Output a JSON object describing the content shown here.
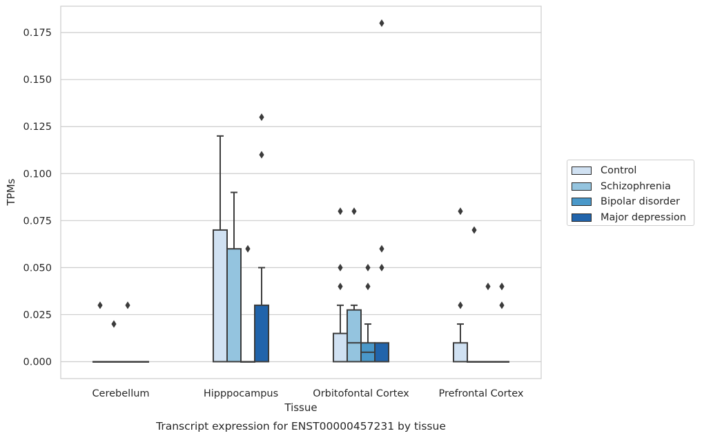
{
  "chart_data": {
    "type": "box",
    "title": "Transcript expression for ENST00000457231 by tissue",
    "xlabel": "Tissue",
    "ylabel": "TPMs",
    "ylim": [
      -0.009,
      0.189
    ],
    "yticks": [
      "0.000",
      "0.025",
      "0.050",
      "0.075",
      "0.100",
      "0.125",
      "0.150",
      "0.175"
    ],
    "grid": "horizontal",
    "legend_placement": "right",
    "categories": [
      "Cerebellum",
      "Hipppocampus",
      "Orbitofontal Cortex",
      "Prefrontal Cortex"
    ],
    "series": [
      {
        "name": "Control",
        "color": "#d0e1f2",
        "boxes": [
          {
            "q1": 0,
            "median": 0,
            "q3": 0,
            "whisker_low": 0,
            "whisker_high": 0,
            "outliers": [
              0.03
            ]
          },
          {
            "q1": 0,
            "median": 0,
            "q3": 0.07,
            "whisker_low": 0,
            "whisker_high": 0.12,
            "outliers": []
          },
          {
            "q1": 0,
            "median": 0,
            "q3": 0.015,
            "whisker_low": 0,
            "whisker_high": 0.03,
            "outliers": [
              0.04,
              0.05,
              0.08
            ]
          },
          {
            "q1": 0,
            "median": 0,
            "q3": 0.01,
            "whisker_low": 0,
            "whisker_high": 0.02,
            "outliers": [
              0.03,
              0.08
            ]
          }
        ]
      },
      {
        "name": "Schizophrenia",
        "color": "#94c4df",
        "boxes": [
          {
            "q1": 0,
            "median": 0,
            "q3": 0,
            "whisker_low": 0,
            "whisker_high": 0,
            "outliers": [
              0.02
            ]
          },
          {
            "q1": 0,
            "median": 0,
            "q3": 0.06,
            "whisker_low": 0,
            "whisker_high": 0.09,
            "outliers": []
          },
          {
            "q1": 0,
            "median": 0.01,
            "q3": 0.0275,
            "whisker_low": 0,
            "whisker_high": 0.03,
            "outliers": [
              0.08
            ]
          },
          {
            "q1": 0,
            "median": 0,
            "q3": 0,
            "whisker_low": 0,
            "whisker_high": 0,
            "outliers": [
              0.07
            ]
          }
        ]
      },
      {
        "name": "Bipolar disorder",
        "color": "#4a98c9",
        "boxes": [
          {
            "q1": 0,
            "median": 0,
            "q3": 0,
            "whisker_low": 0,
            "whisker_high": 0,
            "outliers": [
              0.03
            ]
          },
          {
            "q1": 0,
            "median": 0,
            "q3": 0,
            "whisker_low": 0,
            "whisker_high": 0,
            "outliers": [
              0.06
            ]
          },
          {
            "q1": 0,
            "median": 0.005,
            "q3": 0.01,
            "whisker_low": 0,
            "whisker_high": 0.02,
            "outliers": [
              0.04,
              0.05
            ]
          },
          {
            "q1": 0,
            "median": 0,
            "q3": 0,
            "whisker_low": 0,
            "whisker_high": 0,
            "outliers": [
              0.04
            ]
          }
        ]
      },
      {
        "name": "Major depression",
        "color": "#2164ab",
        "boxes": [
          {
            "q1": 0,
            "median": 0,
            "q3": 0,
            "whisker_low": 0,
            "whisker_high": 0,
            "outliers": []
          },
          {
            "q1": 0,
            "median": 0,
            "q3": 0.03,
            "whisker_low": 0,
            "whisker_high": 0.05,
            "outliers": [
              0.11,
              0.13
            ]
          },
          {
            "q1": 0,
            "median": 0,
            "q3": 0.01,
            "whisker_low": 0,
            "whisker_high": 0.01,
            "outliers": [
              0.05,
              0.06,
              0.18
            ]
          },
          {
            "q1": 0,
            "median": 0,
            "q3": 0,
            "whisker_low": 0,
            "whisker_high": 0,
            "outliers": [
              0.03,
              0.04,
              0.04
            ]
          }
        ]
      }
    ]
  }
}
